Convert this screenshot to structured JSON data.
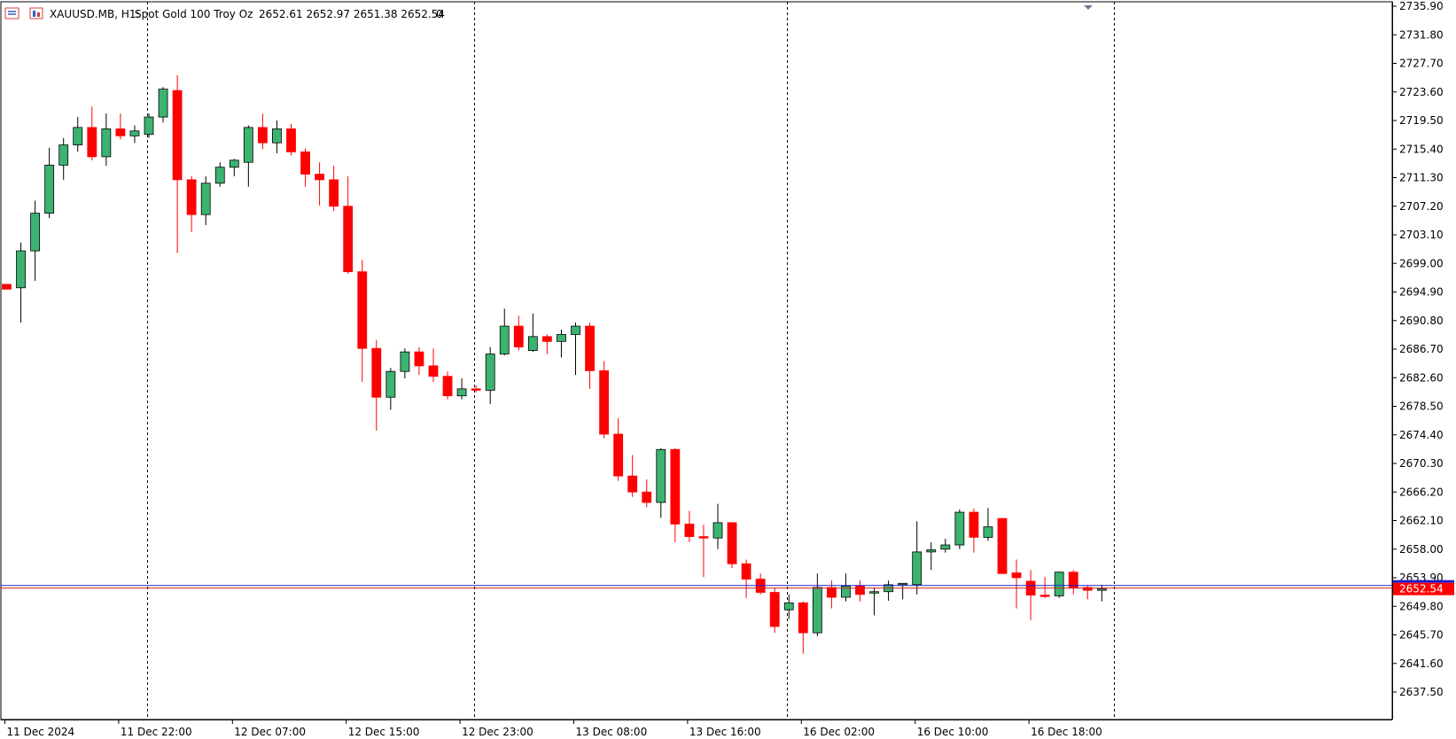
{
  "header": {
    "symbol": "XAUUSD.MB, H1:",
    "description": "Spot Gold 100 Troy Oz",
    "ohlc": "2652.61 2652.97 2651.38 2652.54",
    "volume": "0"
  },
  "colors": {
    "bull": "#3cb371",
    "bear": "#ff0000",
    "bid_line": "#2222cc",
    "ask_line": "#cc2222",
    "price_tag_bg": "#ff0000",
    "price_tag_top": "#1a1acc"
  },
  "chart_data": {
    "type": "candlestick",
    "symbol": "XAUUSD.MB",
    "timeframe": "H1",
    "ylim": [
      2634.0,
      2737.0
    ],
    "y_ticks": [
      "2735.90",
      "2731.80",
      "2727.70",
      "2723.60",
      "2719.50",
      "2715.40",
      "2711.30",
      "2707.20",
      "2703.10",
      "2699.00",
      "2694.90",
      "2690.80",
      "2686.70",
      "2682.60",
      "2678.50",
      "2674.40",
      "2670.30",
      "2666.20",
      "2662.10",
      "2658.00",
      "2653.90",
      "2649.80",
      "2645.70",
      "2641.60",
      "2637.50"
    ],
    "x_labels": [
      "11 Dec 2024",
      "11 Dec 22:00",
      "12 Dec 07:00",
      "12 Dec 15:00",
      "12 Dec 23:00",
      "13 Dec 08:00",
      "13 Dec 16:00",
      "16 Dec 02:00",
      "16 Dec 10:00",
      "16 Dec 18:00"
    ],
    "session_separators": [
      10,
      33,
      55,
      78
    ],
    "current_price": "2652.54",
    "candles": [
      [
        2696.0,
        2696.0,
        2695.3,
        2695.3
      ],
      [
        2695.5,
        2702.0,
        2690.5,
        2700.8
      ],
      [
        2700.8,
        2708.0,
        2696.5,
        2706.2
      ],
      [
        2706.2,
        2715.6,
        2705.5,
        2713.1
      ],
      [
        2713.1,
        2717.0,
        2711.0,
        2716.0
      ],
      [
        2716.0,
        2720.0,
        2715.0,
        2718.5
      ],
      [
        2718.5,
        2721.5,
        2713.8,
        2714.3
      ],
      [
        2714.3,
        2720.5,
        2713.0,
        2718.3
      ],
      [
        2718.3,
        2720.5,
        2716.8,
        2717.3
      ],
      [
        2717.3,
        2718.8,
        2716.3,
        2718.0
      ],
      [
        2717.5,
        2720.5,
        2717.0,
        2720.0
      ],
      [
        2720.0,
        2724.3,
        2719.2,
        2724.0
      ],
      [
        2723.8,
        2726.0,
        2700.5,
        2711.0
      ],
      [
        2711.0,
        2711.5,
        2703.5,
        2706.0
      ],
      [
        2706.0,
        2711.5,
        2704.5,
        2710.5
      ],
      [
        2710.5,
        2713.5,
        2710.0,
        2712.8
      ],
      [
        2712.8,
        2714.0,
        2711.5,
        2713.8
      ],
      [
        2713.5,
        2718.8,
        2710.0,
        2718.5
      ],
      [
        2718.5,
        2720.5,
        2715.4,
        2716.3
      ],
      [
        2716.3,
        2719.5,
        2714.8,
        2718.3
      ],
      [
        2718.3,
        2719.0,
        2714.5,
        2715.0
      ],
      [
        2715.0,
        2715.5,
        2710.0,
        2711.8
      ],
      [
        2711.8,
        2713.5,
        2707.3,
        2711.0
      ],
      [
        2711.0,
        2713.0,
        2706.5,
        2707.2
      ],
      [
        2707.2,
        2711.5,
        2697.5,
        2697.8
      ],
      [
        2697.8,
        2699.5,
        2682.0,
        2686.8
      ],
      [
        2686.8,
        2688.0,
        2675.0,
        2679.8
      ],
      [
        2679.8,
        2684.0,
        2678.0,
        2683.5
      ],
      [
        2683.5,
        2686.8,
        2682.5,
        2686.3
      ],
      [
        2686.3,
        2687.0,
        2683.0,
        2684.3
      ],
      [
        2684.3,
        2686.8,
        2682.0,
        2682.8
      ],
      [
        2682.8,
        2683.5,
        2679.5,
        2680.0
      ],
      [
        2680.0,
        2682.5,
        2679.5,
        2681.0
      ],
      [
        2681.0,
        2681.5,
        2680.5,
        2680.8
      ],
      [
        2680.8,
        2687.0,
        2678.8,
        2686.0
      ],
      [
        2686.0,
        2692.5,
        2685.8,
        2690.0
      ],
      [
        2690.0,
        2691.5,
        2686.5,
        2687.0
      ],
      [
        2686.5,
        2691.8,
        2686.3,
        2688.5
      ],
      [
        2688.5,
        2688.8,
        2686.0,
        2687.8
      ],
      [
        2687.8,
        2689.5,
        2685.5,
        2688.8
      ],
      [
        2688.8,
        2690.5,
        2683.0,
        2690.0
      ],
      [
        2690.0,
        2690.5,
        2681.0,
        2683.6
      ],
      [
        2683.6,
        2685.0,
        2673.9,
        2674.5
      ],
      [
        2674.5,
        2676.8,
        2667.8,
        2668.5
      ],
      [
        2668.5,
        2671.5,
        2665.5,
        2666.2
      ],
      [
        2666.2,
        2668.0,
        2664.0,
        2664.7
      ],
      [
        2664.7,
        2672.5,
        2662.5,
        2672.3
      ],
      [
        2672.3,
        2672.5,
        2659.0,
        2661.6
      ],
      [
        2661.6,
        2663.5,
        2659.0,
        2659.8
      ],
      [
        2659.8,
        2661.5,
        2654.0,
        2659.6
      ],
      [
        2659.6,
        2664.5,
        2658.0,
        2661.8
      ],
      [
        2661.8,
        2661.8,
        2655.3,
        2655.9
      ],
      [
        2655.9,
        2656.5,
        2651.0,
        2653.7
      ],
      [
        2653.7,
        2654.5,
        2651.5,
        2651.8
      ],
      [
        2651.8,
        2652.5,
        2646.0,
        2646.9
      ],
      [
        2649.3,
        2651.5,
        2648.0,
        2650.3
      ],
      [
        2650.3,
        2650.5,
        2643.0,
        2646.0
      ],
      [
        2646.0,
        2654.5,
        2645.5,
        2652.5
      ],
      [
        2652.5,
        2653.5,
        2649.5,
        2651.1
      ],
      [
        2651.1,
        2654.5,
        2650.5,
        2652.7
      ],
      [
        2652.7,
        2653.5,
        2650.5,
        2651.5
      ],
      [
        2651.7,
        2652.5,
        2648.5,
        2651.9
      ],
      [
        2651.9,
        2653.5,
        2650.6,
        2652.9
      ],
      [
        2652.9,
        2653.0,
        2650.8,
        2653.1
      ],
      [
        2652.9,
        2662.0,
        2651.5,
        2657.6
      ],
      [
        2657.6,
        2659.0,
        2655.0,
        2657.9
      ],
      [
        2658.0,
        2659.5,
        2657.5,
        2658.6
      ],
      [
        2658.6,
        2663.7,
        2658.0,
        2663.3
      ],
      [
        2663.3,
        2663.8,
        2657.5,
        2659.7
      ],
      [
        2659.7,
        2663.9,
        2659.2,
        2661.2
      ],
      [
        2662.4,
        2662.5,
        2654.5,
        2654.5
      ],
      [
        2654.6,
        2656.5,
        2649.5,
        2653.9
      ],
      [
        2653.4,
        2655.0,
        2647.8,
        2651.4
      ],
      [
        2651.4,
        2654.0,
        2651.0,
        2651.3
      ],
      [
        2651.3,
        2654.8,
        2651.0,
        2654.7
      ],
      [
        2654.7,
        2655.0,
        2651.5,
        2652.5
      ],
      [
        2652.5,
        2652.8,
        2650.8,
        2652.1
      ],
      [
        2652.1,
        2652.9,
        2650.5,
        2652.3
      ]
    ]
  }
}
